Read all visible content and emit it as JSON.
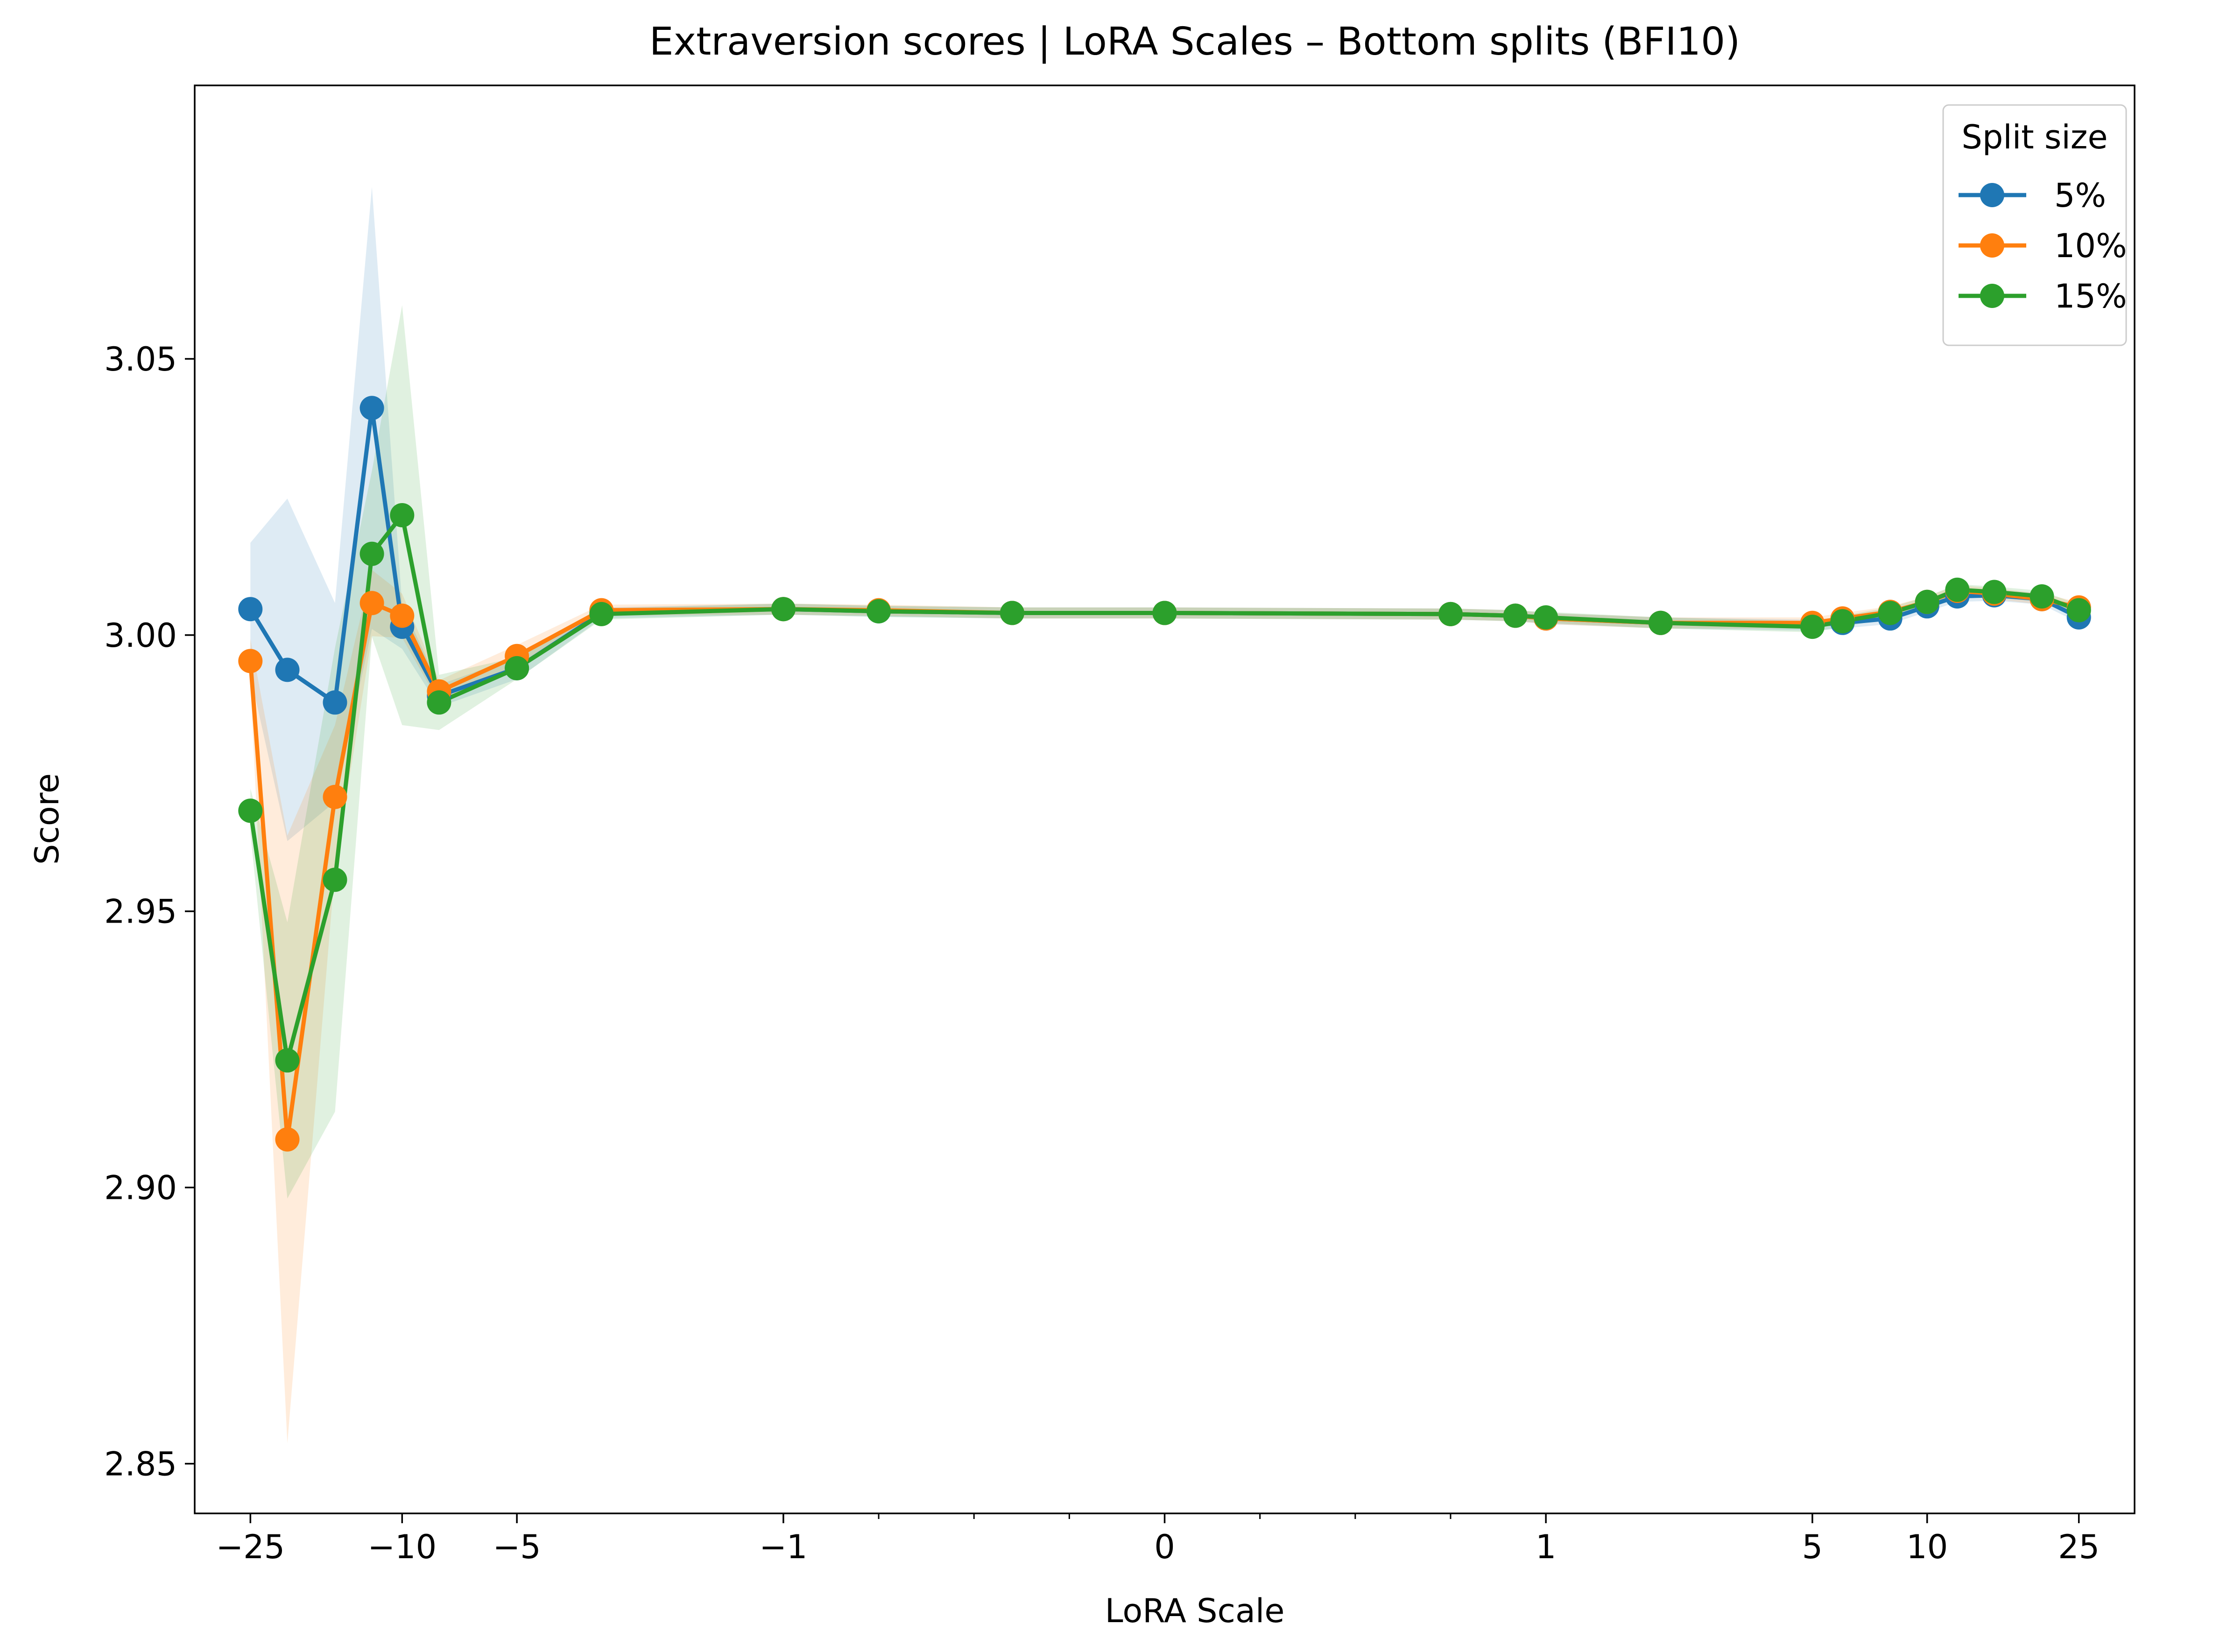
{
  "chart_data": {
    "type": "line",
    "title": "Extraversion scores | LoRA Scales – Bottom splits (BFI10)",
    "xlabel": "LoRA Scale",
    "ylabel": "Score",
    "xscale": "symlog",
    "xlim": [
      -35,
      35
    ],
    "ylim": [
      2.841,
      3.0995
    ],
    "grid": false,
    "legend": {
      "title": "Split size",
      "placement": "top-right"
    },
    "x_ticks": [
      {
        "value": -25,
        "label": "−25"
      },
      {
        "value": -10,
        "label": "−10"
      },
      {
        "value": -5,
        "label": "−5"
      },
      {
        "value": -1,
        "label": "−1"
      },
      {
        "value": 0,
        "label": "0"
      },
      {
        "value": 1,
        "label": "1"
      },
      {
        "value": 5,
        "label": "5"
      },
      {
        "value": 10,
        "label": "10"
      },
      {
        "value": 25,
        "label": "25"
      }
    ],
    "x_minor_ticks": [
      -0.75,
      -0.5,
      -0.25,
      0.25,
      0.5,
      0.75
    ],
    "y_ticks": [
      {
        "value": 2.85,
        "label": "2.85"
      },
      {
        "value": 2.9,
        "label": "2.90"
      },
      {
        "value": 2.95,
        "label": "2.95"
      },
      {
        "value": 3.0,
        "label": "3.00"
      },
      {
        "value": 3.05,
        "label": "3.05"
      }
    ],
    "x": [
      -25,
      -20,
      -15,
      -12,
      -10,
      -8,
      -5,
      -3,
      -1,
      -0.75,
      -0.4,
      0,
      0.75,
      0.92,
      1,
      2,
      5,
      6,
      8,
      10,
      12,
      15,
      20,
      25
    ],
    "series": [
      {
        "name": "5%",
        "color": "#1f77b4",
        "values": [
          3.0047,
          2.9937,
          2.9878,
          3.0411,
          3.0015,
          2.989,
          2.994,
          3.004,
          3.0047,
          3.0043,
          3.004,
          3.004,
          3.0038,
          3.0035,
          3.003,
          3.0022,
          3.0018,
          3.0022,
          3.003,
          3.0052,
          3.007,
          3.0072,
          3.0065,
          3.0032
        ],
        "band": [
          0.012,
          0.031,
          0.018,
          0.04,
          0.004,
          0.002,
          0.002,
          0.001,
          0.001,
          0.001,
          0.001,
          0.001,
          0.001,
          0.001,
          0.001,
          0.001,
          0.001,
          0.001,
          0.001,
          0.001,
          0.001,
          0.001,
          0.001,
          0.001
        ]
      },
      {
        "name": "10%",
        "color": "#ff7f0e",
        "values": [
          2.9953,
          2.9087,
          2.9707,
          3.0058,
          3.0035,
          2.9898,
          2.9962,
          3.0045,
          3.0047,
          3.0045,
          3.004,
          3.004,
          3.0038,
          3.0035,
          3.003,
          3.0022,
          3.0022,
          3.003,
          3.0042,
          3.006,
          3.008,
          3.0075,
          3.0065,
          3.005
        ],
        "band": [
          0.004,
          0.055,
          0.013,
          0.006,
          0.004,
          0.002,
          0.002,
          0.001,
          0.001,
          0.001,
          0.001,
          0.001,
          0.001,
          0.001,
          0.001,
          0.001,
          0.001,
          0.001,
          0.001,
          0.001,
          0.001,
          0.001,
          0.001,
          0.001
        ]
      },
      {
        "name": "15%",
        "color": "#2ca02c",
        "values": [
          2.9682,
          2.923,
          2.9557,
          3.0147,
          3.0217,
          2.9878,
          2.994,
          3.0038,
          3.0047,
          3.0043,
          3.004,
          3.004,
          3.0038,
          3.0035,
          3.0032,
          3.0022,
          3.0015,
          3.0025,
          3.004,
          3.006,
          3.0082,
          3.0078,
          3.007,
          3.0045
        ],
        "band": [
          0.004,
          0.025,
          0.042,
          0.015,
          0.038,
          0.005,
          0.002,
          0.001,
          0.001,
          0.001,
          0.001,
          0.001,
          0.001,
          0.001,
          0.001,
          0.001,
          0.001,
          0.001,
          0.001,
          0.001,
          0.001,
          0.001,
          0.001,
          0.001
        ]
      }
    ]
  }
}
